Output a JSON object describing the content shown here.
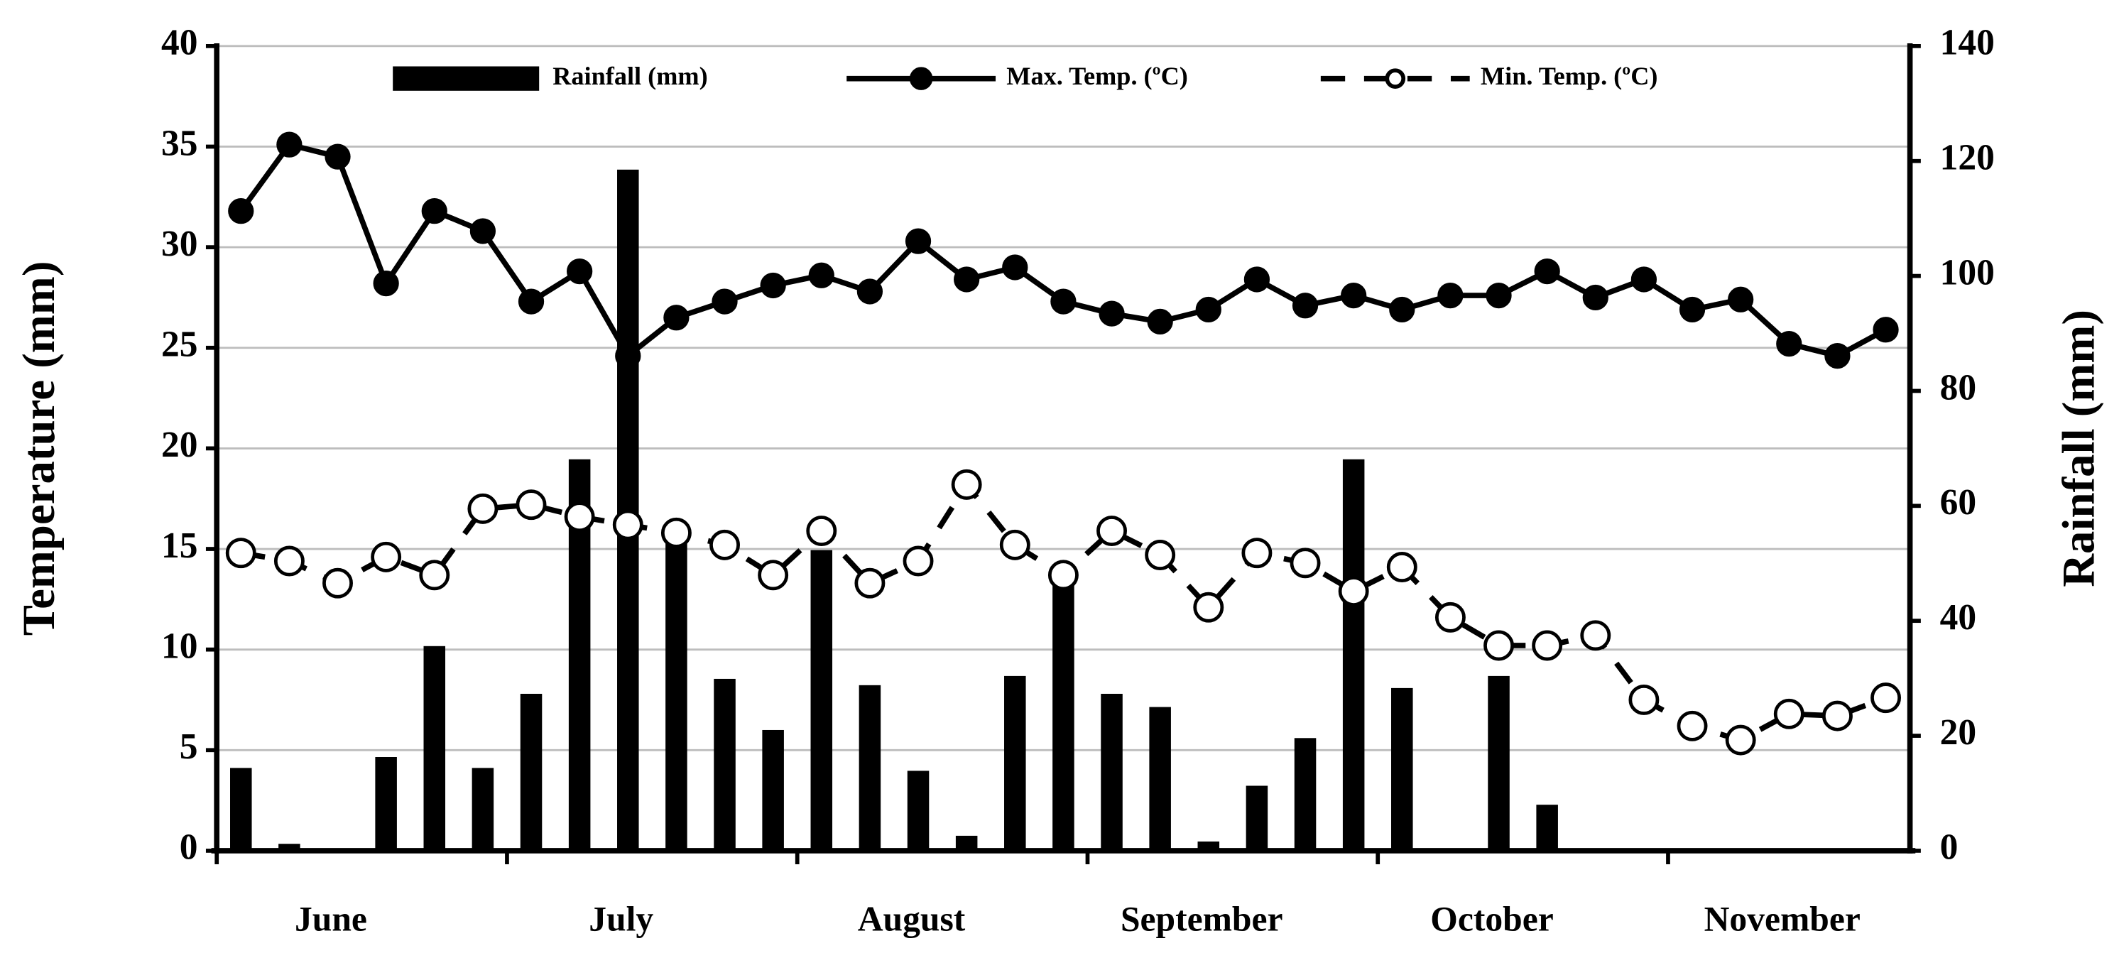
{
  "chart_data": {
    "type": "bar-line",
    "categories": [
      null,
      null,
      "June",
      null,
      null,
      null,
      null,
      null,
      "July",
      null,
      null,
      null,
      null,
      null,
      "August",
      null,
      null,
      null,
      null,
      null,
      "September",
      null,
      null,
      null,
      null,
      null,
      "October",
      null,
      null,
      null,
      null,
      null,
      "November",
      null,
      null
    ],
    "series": [
      {
        "name": "Rainfall (mm)",
        "type": "bar",
        "axis": "y2",
        "color": "#000000",
        "values": [
          14.4,
          1.2,
          0,
          16.3,
          35.6,
          14.4,
          27.3,
          68.1,
          118.5,
          54.4,
          29.9,
          21.0,
          52.3,
          28.8,
          13.9,
          2.6,
          30.4,
          46.7,
          27.3,
          25.0,
          1.6,
          11.3,
          19.6,
          68.1,
          28.3,
          0,
          30.4,
          8.0,
          0,
          0,
          0,
          0,
          0,
          0,
          0
        ]
      },
      {
        "name": "Max. Temp. (ºC)",
        "type": "line",
        "color": "#000000",
        "values": [
          31.8,
          35.1,
          34.5,
          28.2,
          31.8,
          30.8,
          27.3,
          28.8,
          24.6,
          26.5,
          27.3,
          28.1,
          28.6,
          27.8,
          30.3,
          28.4,
          29.0,
          27.3,
          26.7,
          26.3,
          26.9,
          28.4,
          27.1,
          27.6,
          26.9,
          27.6,
          27.6,
          28.8,
          27.5,
          28.4,
          26.9,
          27.4,
          25.2,
          24.6,
          25.9
        ]
      },
      {
        "name": "Min. Temp. (ºC)",
        "type": "dashed-line",
        "color": "#000000",
        "values": [
          14.8,
          14.4,
          13.3,
          14.6,
          13.7,
          17.0,
          17.2,
          16.6,
          16.2,
          15.8,
          15.2,
          13.7,
          15.9,
          13.3,
          14.4,
          18.2,
          15.2,
          13.7,
          15.9,
          14.7,
          12.1,
          14.8,
          14.3,
          12.9,
          14.1,
          11.6,
          10.2,
          10.2,
          10.7,
          7.5,
          6.2,
          5.5,
          6.8,
          6.7,
          7.6
        ]
      }
    ],
    "y_label": "Temperature (mm)",
    "y2_label": "Rainfall (mm)",
    "ylim": [
      0,
      40
    ],
    "yticks": [
      0,
      5,
      10,
      15,
      20,
      25,
      30,
      35,
      40
    ],
    "y2lim": [
      0,
      140
    ],
    "y2ticks": [
      0,
      20,
      40,
      60,
      80,
      100,
      120,
      140
    ],
    "grid": true,
    "legend": "top"
  }
}
